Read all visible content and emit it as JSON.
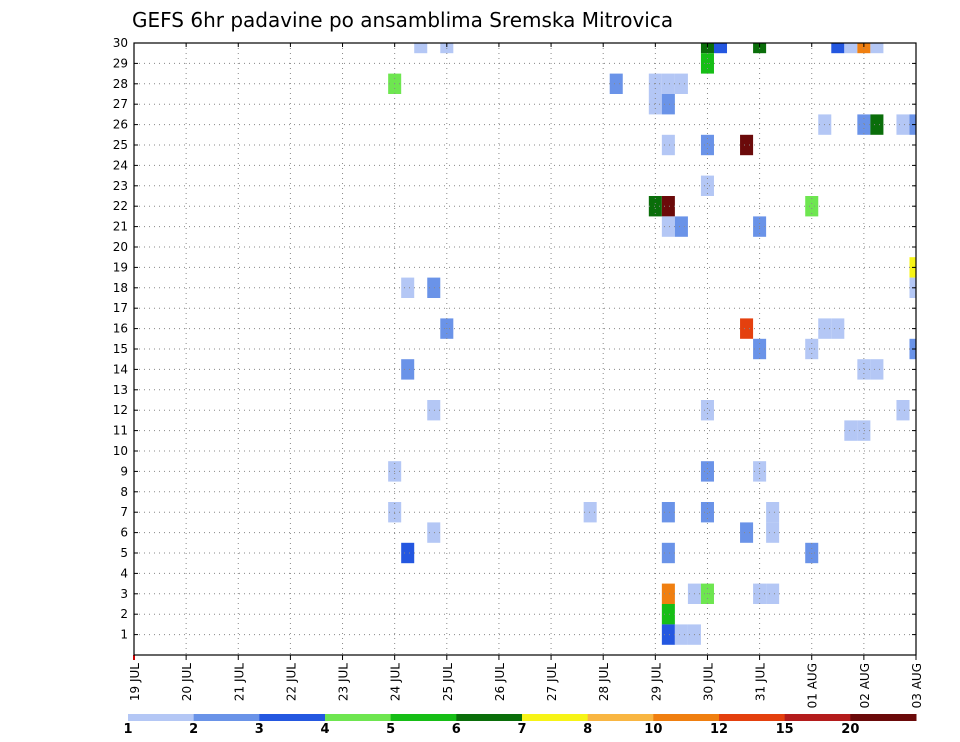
{
  "chart_data": {
    "type": "heatmap",
    "title": "GEFS 6hr padavine po ansamblima Sremska Mitrovica",
    "xlabel": "",
    "ylabel": "",
    "x_tick_labels": [
      "19 JUL",
      "20 JUL",
      "21 JUL",
      "22 JUL",
      "23 JUL",
      "24 JUL",
      "25 JUL",
      "26 JUL",
      "27 JUL",
      "28 JUL",
      "29 JUL",
      "30 JUL",
      "31 JUL",
      "01 AUG",
      "02 AUG",
      "03 AUG"
    ],
    "x_range_days": [
      0,
      15
    ],
    "y_tick_labels": [
      "1",
      "2",
      "3",
      "4",
      "5",
      "6",
      "7",
      "8",
      "9",
      "10",
      "11",
      "12",
      "13",
      "14",
      "15",
      "16",
      "17",
      "18",
      "19",
      "20",
      "21",
      "22",
      "23",
      "24",
      "25",
      "26",
      "27",
      "28",
      "29",
      "30"
    ],
    "y_range": [
      0,
      30
    ],
    "grid": true,
    "colorbar": {
      "colors": [
        "#b4c7f5",
        "#6a93e8",
        "#2457e0",
        "#6ee650",
        "#16be16",
        "#0a6e0a",
        "#f7f416",
        "#f9b642",
        "#f07f10",
        "#e4400e",
        "#b41c1c",
        "#6b0a0a"
      ],
      "labels": [
        "1",
        "2",
        "3",
        "4",
        "5",
        "6",
        "7",
        "8",
        "10",
        "12",
        "15",
        "20"
      ],
      "label_positions": [
        0,
        1,
        2,
        3,
        4,
        5,
        6,
        7,
        8,
        9,
        10,
        11
      ]
    },
    "cells": [
      {
        "t": 5.5,
        "m": 30,
        "c": 0
      },
      {
        "t": 6.0,
        "m": 30,
        "c": 0
      },
      {
        "t": 11.0,
        "m": 30,
        "c": 5
      },
      {
        "t": 11.25,
        "m": 30,
        "c": 2
      },
      {
        "t": 12.0,
        "m": 30,
        "c": 5
      },
      {
        "t": 13.5,
        "m": 30,
        "c": 2
      },
      {
        "t": 13.75,
        "m": 30,
        "c": 0
      },
      {
        "t": 14.0,
        "m": 30,
        "c": 8
      },
      {
        "t": 14.25,
        "m": 30,
        "c": 0
      },
      {
        "t": 11.0,
        "m": 29,
        "c": 4
      },
      {
        "t": 5.0,
        "m": 28,
        "c": 3
      },
      {
        "t": 9.25,
        "m": 28,
        "c": 1
      },
      {
        "t": 10.0,
        "m": 28,
        "c": 0
      },
      {
        "t": 10.25,
        "m": 28,
        "c": 0
      },
      {
        "t": 10.5,
        "m": 28,
        "c": 0
      },
      {
        "t": 10.0,
        "m": 27,
        "c": 0
      },
      {
        "t": 10.25,
        "m": 27,
        "c": 1
      },
      {
        "t": 13.25,
        "m": 26,
        "c": 0
      },
      {
        "t": 14.0,
        "m": 26,
        "c": 1
      },
      {
        "t": 14.25,
        "m": 26,
        "c": 5
      },
      {
        "t": 14.75,
        "m": 26,
        "c": 0
      },
      {
        "t": 15.0,
        "m": 26,
        "c": 1
      },
      {
        "t": 10.25,
        "m": 25,
        "c": 0
      },
      {
        "t": 11.0,
        "m": 25,
        "c": 1
      },
      {
        "t": 11.75,
        "m": 25,
        "c": 11
      },
      {
        "t": 11.0,
        "m": 23,
        "c": 0
      },
      {
        "t": 10.0,
        "m": 22,
        "c": 5
      },
      {
        "t": 10.25,
        "m": 22,
        "c": 11
      },
      {
        "t": 13.0,
        "m": 22,
        "c": 3
      },
      {
        "t": 10.25,
        "m": 21,
        "c": 0
      },
      {
        "t": 10.5,
        "m": 21,
        "c": 1
      },
      {
        "t": 12.0,
        "m": 21,
        "c": 1
      },
      {
        "t": 15.0,
        "m": 19,
        "c": 6
      },
      {
        "t": 5.25,
        "m": 18,
        "c": 0
      },
      {
        "t": 5.75,
        "m": 18,
        "c": 1
      },
      {
        "t": 15.0,
        "m": 18,
        "c": 0
      },
      {
        "t": 6.0,
        "m": 16,
        "c": 1
      },
      {
        "t": 11.75,
        "m": 16,
        "c": 9
      },
      {
        "t": 13.25,
        "m": 16,
        "c": 0
      },
      {
        "t": 13.5,
        "m": 16,
        "c": 0
      },
      {
        "t": 12.0,
        "m": 15,
        "c": 1
      },
      {
        "t": 13.0,
        "m": 15,
        "c": 0
      },
      {
        "t": 15.0,
        "m": 15,
        "c": 1
      },
      {
        "t": 5.25,
        "m": 14,
        "c": 1
      },
      {
        "t": 14.0,
        "m": 14,
        "c": 0
      },
      {
        "t": 14.25,
        "m": 14,
        "c": 0
      },
      {
        "t": 5.75,
        "m": 12,
        "c": 0
      },
      {
        "t": 11.0,
        "m": 12,
        "c": 0
      },
      {
        "t": 14.75,
        "m": 12,
        "c": 0
      },
      {
        "t": 13.75,
        "m": 11,
        "c": 0
      },
      {
        "t": 14.0,
        "m": 11,
        "c": 0
      },
      {
        "t": 5.0,
        "m": 9,
        "c": 0
      },
      {
        "t": 11.0,
        "m": 9,
        "c": 1
      },
      {
        "t": 12.0,
        "m": 9,
        "c": 0
      },
      {
        "t": 5.0,
        "m": 7,
        "c": 0
      },
      {
        "t": 8.75,
        "m": 7,
        "c": 0
      },
      {
        "t": 10.25,
        "m": 7,
        "c": 1
      },
      {
        "t": 11.0,
        "m": 7,
        "c": 1
      },
      {
        "t": 12.25,
        "m": 7,
        "c": 0
      },
      {
        "t": 5.75,
        "m": 6,
        "c": 0
      },
      {
        "t": 11.75,
        "m": 6,
        "c": 1
      },
      {
        "t": 12.25,
        "m": 6,
        "c": 0
      },
      {
        "t": 5.25,
        "m": 5,
        "c": 2
      },
      {
        "t": 10.25,
        "m": 5,
        "c": 1
      },
      {
        "t": 13.0,
        "m": 5,
        "c": 1
      },
      {
        "t": 10.25,
        "m": 3,
        "c": 8
      },
      {
        "t": 10.75,
        "m": 3,
        "c": 0
      },
      {
        "t": 11.0,
        "m": 3,
        "c": 3
      },
      {
        "t": 12.0,
        "m": 3,
        "c": 0
      },
      {
        "t": 12.25,
        "m": 3,
        "c": 0
      },
      {
        "t": 10.25,
        "m": 2,
        "c": 4
      },
      {
        "t": 10.25,
        "m": 1,
        "c": 2
      },
      {
        "t": 10.5,
        "m": 1,
        "c": 0
      },
      {
        "t": 10.75,
        "m": 1,
        "c": 0
      }
    ]
  }
}
